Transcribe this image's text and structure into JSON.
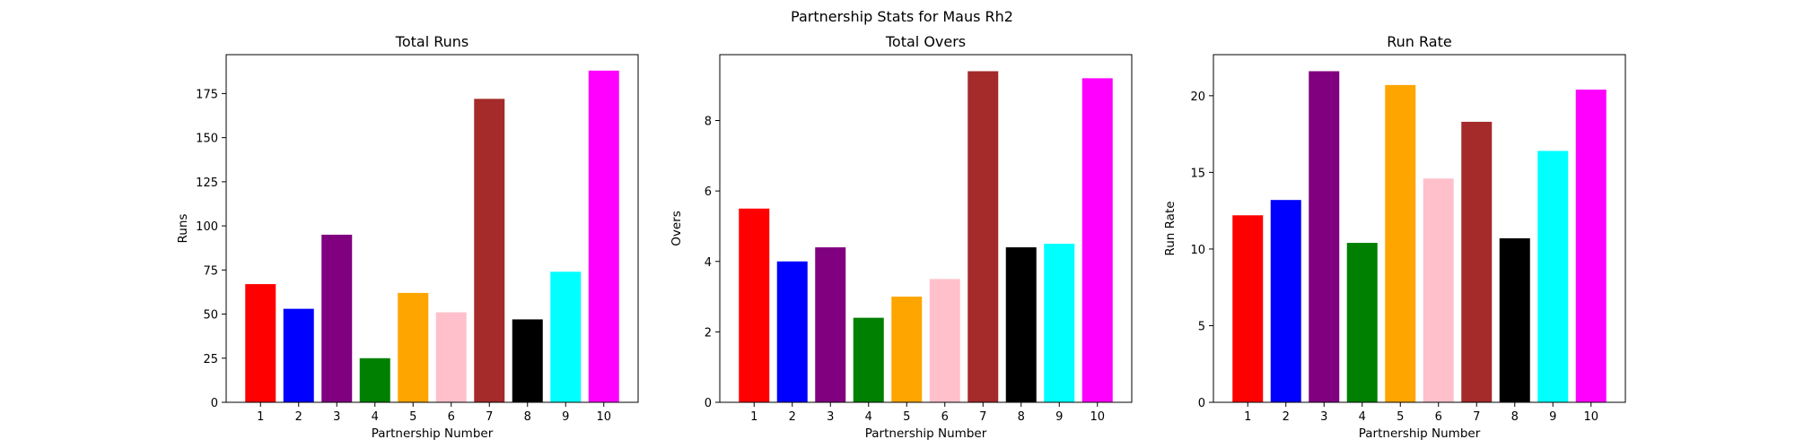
{
  "figure_title": "Partnership Stats for Maus Rh2",
  "chart_data": [
    {
      "type": "bar",
      "title": "Total Runs",
      "xlabel": "Partnership Number",
      "ylabel": "Runs",
      "categories": [
        "1",
        "2",
        "3",
        "4",
        "5",
        "6",
        "7",
        "8",
        "9",
        "10"
      ],
      "values": [
        67,
        53,
        95,
        25,
        62,
        51,
        172,
        47,
        74,
        188
      ],
      "colors": [
        "#ff0000",
        "#0000ff",
        "#800080",
        "#008000",
        "#ffa500",
        "#ffc0cb",
        "#a52a2a",
        "#000000",
        "#00ffff",
        "#ff00ff"
      ],
      "ylim": [
        0,
        197.05
      ],
      "yticks": [
        0,
        25,
        50,
        75,
        100,
        125,
        150,
        175
      ],
      "ytick_labels": [
        "0",
        "25",
        "50",
        "75",
        "100",
        "125",
        "150",
        "175"
      ],
      "grid": false
    },
    {
      "type": "bar",
      "title": "Total Overs",
      "xlabel": "Partnership Number",
      "ylabel": "Overs",
      "categories": [
        "1",
        "2",
        "3",
        "4",
        "5",
        "6",
        "7",
        "8",
        "9",
        "10"
      ],
      "values": [
        5.5,
        4.0,
        4.4,
        2.4,
        3.0,
        3.5,
        9.4,
        4.4,
        4.5,
        9.2
      ],
      "colors": [
        "#ff0000",
        "#0000ff",
        "#800080",
        "#008000",
        "#ffa500",
        "#ffc0cb",
        "#a52a2a",
        "#000000",
        "#00ffff",
        "#ff00ff"
      ],
      "ylim": [
        0,
        9.87
      ],
      "yticks": [
        0,
        2,
        4,
        6,
        8
      ],
      "ytick_labels": [
        "0",
        "2",
        "4",
        "6",
        "8"
      ],
      "grid": false
    },
    {
      "type": "bar",
      "title": "Run Rate",
      "xlabel": "Partnership Number",
      "ylabel": "Run Rate",
      "categories": [
        "1",
        "2",
        "3",
        "4",
        "5",
        "6",
        "7",
        "8",
        "9",
        "10"
      ],
      "values": [
        12.2,
        13.2,
        21.6,
        10.4,
        20.7,
        14.6,
        18.3,
        10.7,
        16.4,
        20.4
      ],
      "colors": [
        "#ff0000",
        "#0000ff",
        "#800080",
        "#008000",
        "#ffa500",
        "#ffc0cb",
        "#a52a2a",
        "#000000",
        "#00ffff",
        "#ff00ff"
      ],
      "ylim": [
        0,
        22.68
      ],
      "yticks": [
        0,
        5,
        10,
        15,
        20
      ],
      "ytick_labels": [
        "0",
        "5",
        "10",
        "15",
        "20"
      ],
      "grid": false
    }
  ]
}
